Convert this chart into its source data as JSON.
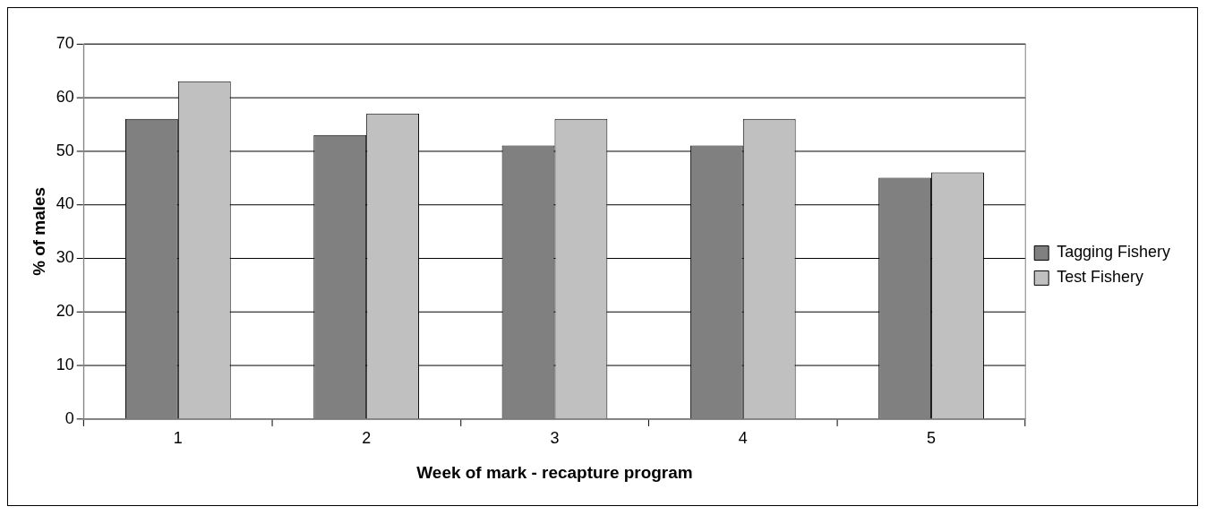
{
  "chart_data": {
    "type": "bar",
    "xlabel": "Week of mark - recapture program",
    "ylabel": "% of males",
    "categories": [
      "1",
      "2",
      "3",
      "4",
      "5"
    ],
    "series": [
      {
        "name": "Tagging Fishery",
        "color": "#808080",
        "values": [
          56,
          53,
          51,
          51,
          45
        ]
      },
      {
        "name": "Test Fishery",
        "color": "#c0c0c0",
        "values": [
          63,
          57,
          56,
          56,
          46
        ]
      }
    ],
    "ylim": [
      0,
      70
    ],
    "yticks": [
      0,
      10,
      20,
      30,
      40,
      50,
      60,
      70
    ],
    "grid": "y",
    "legend": "right"
  }
}
